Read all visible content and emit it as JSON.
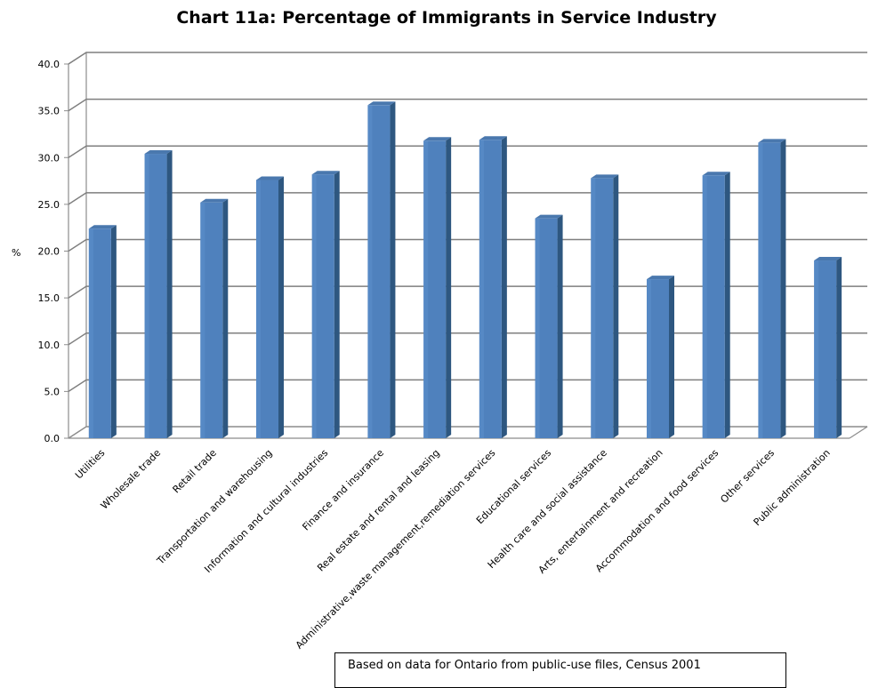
{
  "chart_data": {
    "type": "bar",
    "title": "Chart 11a: Percentage of Immigrants in Service Industry",
    "ylabel": "%",
    "xlabel": "",
    "ylim": [
      0,
      40
    ],
    "y_ticks": [
      "0.0",
      "5.0",
      "10.0",
      "15.0",
      "20.0",
      "25.0",
      "30.0",
      "35.0",
      "40.0"
    ],
    "grid": true,
    "style": "3d-column",
    "bar_color": "#4f81bd",
    "categories": [
      "Utilities",
      "Wholesale trade",
      "Retail trade",
      "Transportation and warehousing",
      "Information and cultural industries",
      "Finance and insurance",
      "Real estate and rental and leasing",
      "Administrative,waste management,remediation services",
      "Educational services",
      "Health care and social assistance",
      "Arts, entertainment and recreation",
      "Accommodation and food services",
      "Other services",
      "Public administration"
    ],
    "values": [
      22.4,
      30.4,
      25.2,
      27.6,
      28.2,
      35.6,
      31.8,
      31.9,
      23.5,
      27.8,
      17.0,
      28.1,
      31.6,
      19.0
    ]
  },
  "footnote": "Based on data for Ontario from public-use files, Census 2001"
}
